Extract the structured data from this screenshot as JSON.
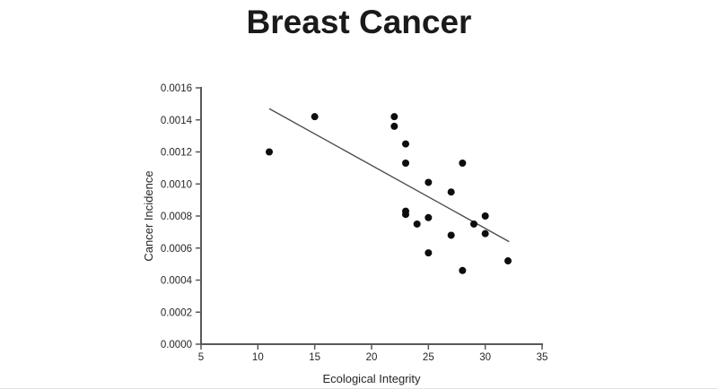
{
  "chart_data": {
    "type": "scatter",
    "title": "Breast Cancer",
    "xlabel": "Ecological Integrity",
    "ylabel": "Cancer Incidence",
    "xlim": [
      5,
      35
    ],
    "ylim": [
      0,
      0.0016
    ],
    "x_ticks": [
      5,
      10,
      15,
      20,
      25,
      30,
      35
    ],
    "x_tick_labels": [
      "5",
      "10",
      "15",
      "20",
      "25",
      "30",
      "35"
    ],
    "y_ticks": [
      0.0,
      0.0002,
      0.0004,
      0.0006,
      0.0008,
      0.001,
      0.0012,
      0.0014,
      0.0016
    ],
    "y_tick_labels": [
      "0.0000",
      "0.0002",
      "0.0004",
      "0.0006",
      "0.0008",
      "0.0010",
      "0.0012",
      "0.0014",
      "0.0016"
    ],
    "grid": false,
    "legend": null,
    "points": [
      [
        11,
        0.0012
      ],
      [
        15,
        0.00142
      ],
      [
        22,
        0.00142
      ],
      [
        22,
        0.00136
      ],
      [
        23,
        0.00125
      ],
      [
        23,
        0.00113
      ],
      [
        28,
        0.00113
      ],
      [
        25,
        0.00101
      ],
      [
        27,
        0.00095
      ],
      [
        23,
        0.00083
      ],
      [
        23,
        0.00081
      ],
      [
        25,
        0.00079
      ],
      [
        24,
        0.00075
      ],
      [
        29,
        0.00075
      ],
      [
        30,
        0.0008
      ],
      [
        30,
        0.00069
      ],
      [
        27,
        0.00068
      ],
      [
        25,
        0.00057
      ],
      [
        32,
        0.00052
      ],
      [
        28,
        0.00046
      ]
    ],
    "trendline": {
      "x1": 11,
      "y1": 0.00147,
      "x2": 32.1,
      "y2": 0.00064
    },
    "colors": {
      "point": "#0d0d0d",
      "trendline": "#4d4d4d",
      "axis": "#595959",
      "text": "#262626",
      "title": "#1a1a1a",
      "background": "#ffffff"
    }
  }
}
